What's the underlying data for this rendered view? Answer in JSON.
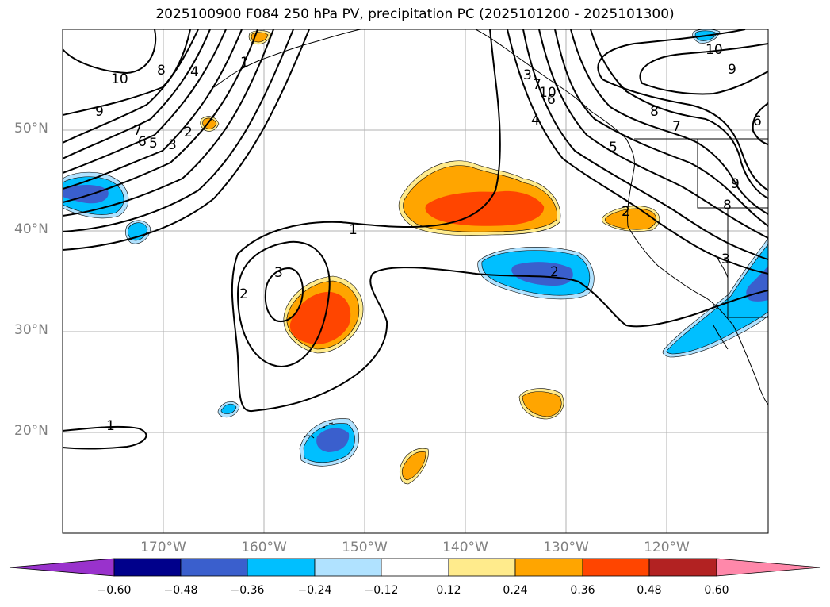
{
  "title": "2025100900 F084 250 hPa PV, precipitation PC (2025101200 - 2025101300)",
  "latitudes": [
    "50°N",
    "40°N",
    "30°N",
    "20°N"
  ],
  "longitudes": [
    "170°W",
    "160°W",
    "150°W",
    "140°W",
    "130°W",
    "120°W"
  ],
  "pv_contour_labels": [
    "10",
    "9",
    "8",
    "7",
    "6",
    "5",
    "4",
    "3",
    "2",
    "1",
    "1",
    "2",
    "3",
    "1",
    "2",
    "3",
    "4",
    "5",
    "6",
    "7",
    "8",
    "9",
    "10",
    "10",
    "9",
    "8",
    "7",
    "6",
    "3",
    "2"
  ],
  "colorbar": {
    "ticks": [
      "−0.60",
      "−0.48",
      "−0.36",
      "−0.24",
      "−0.12",
      "0.12",
      "0.24",
      "0.36",
      "0.48",
      "0.60"
    ],
    "colors": [
      "#9932cc",
      "#00008b",
      "#3a5fcd",
      "#00bfff",
      "#b0e2ff",
      "#ffffff",
      "#ffeb8c",
      "#ffa500",
      "#ff4500",
      "#b22222",
      "#ff88aa"
    ]
  }
}
